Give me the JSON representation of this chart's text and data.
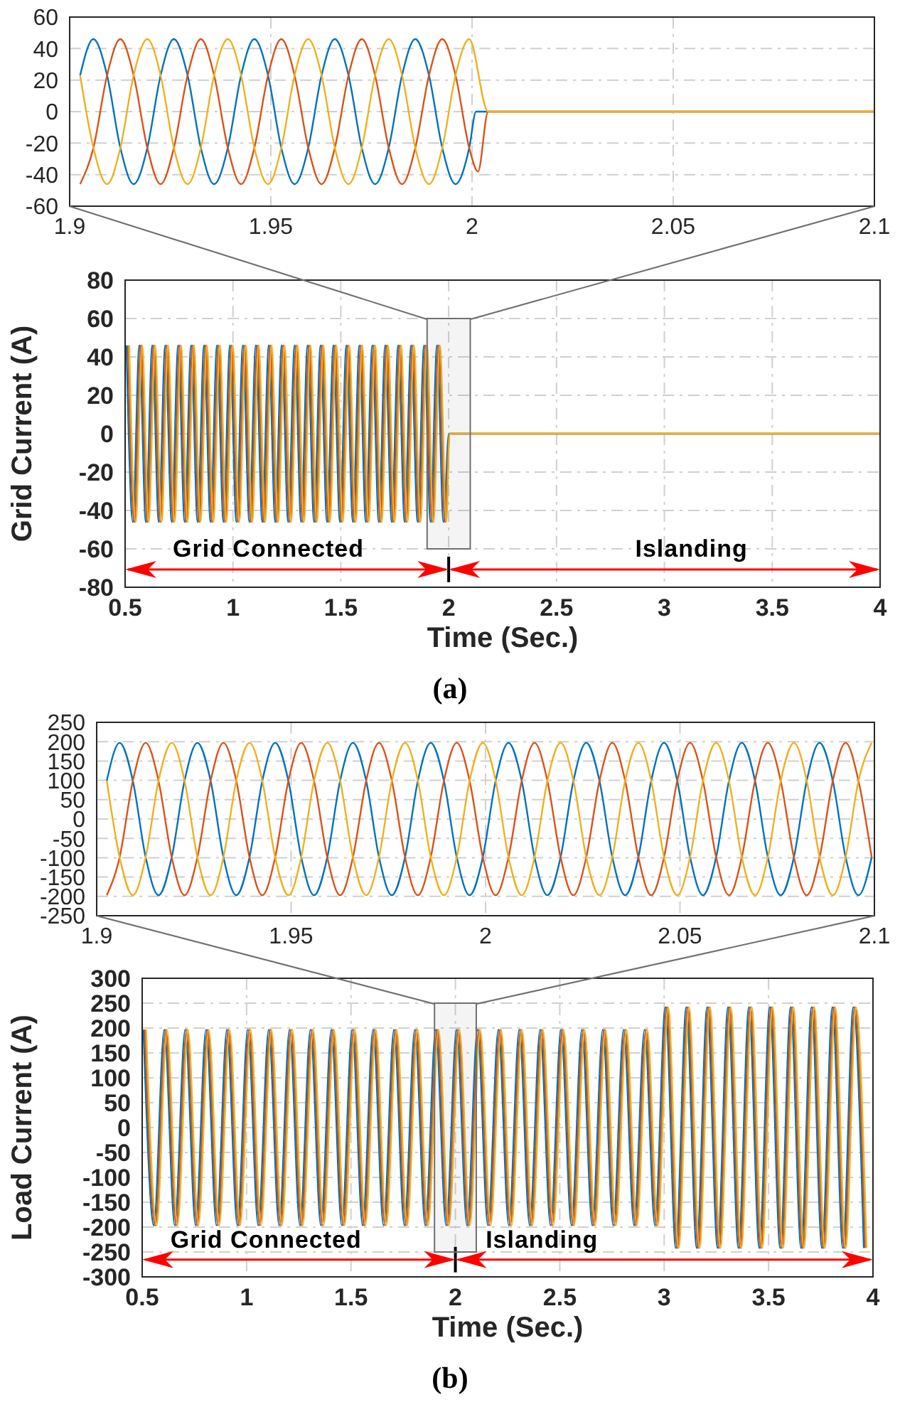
{
  "chart_data": [
    {
      "type": "line",
      "xlim": [
        1.9,
        2.1
      ],
      "xticks": [
        1.9,
        1.95,
        2,
        2.05,
        2.1
      ],
      "ylim": [
        -60,
        60
      ],
      "yticks": [
        -60,
        -40,
        -20,
        0,
        20,
        40,
        60
      ],
      "grid": true,
      "series": [
        {
          "color": "#0072bd",
          "x": [
            1.9026,
            1.9059,
            1.9093,
            1.9126,
            1.9159,
            1.9193,
            1.9226,
            1.9259,
            1.9293,
            1.9326,
            1.9359,
            1.9393,
            1.9426,
            1.9459,
            1.9493,
            1.9526,
            1.9559,
            1.9593,
            1.9626,
            1.9659,
            1.9693,
            1.9726,
            1.9759,
            1.9793,
            1.9826,
            1.9859,
            1.9893,
            1.9926,
            1.9959,
            1.9993,
            2.001,
            2.1
          ],
          "values": [
            23,
            46,
            23,
            -23,
            -46,
            -23,
            23,
            46,
            23,
            -23,
            -46,
            -23,
            23,
            46,
            23,
            -23,
            -46,
            -23,
            23,
            46,
            23,
            -23,
            -46,
            -23,
            23,
            46,
            23,
            -23,
            -46,
            -23,
            0,
            0
          ]
        },
        {
          "color": "#d95319",
          "x": [
            1.9026,
            1.9059,
            1.9093,
            1.9126,
            1.9159,
            1.9193,
            1.9226,
            1.9259,
            1.9293,
            1.9326,
            1.9359,
            1.9393,
            1.9426,
            1.9459,
            1.9493,
            1.9526,
            1.9559,
            1.9593,
            1.9626,
            1.9659,
            1.9693,
            1.9726,
            1.9759,
            1.9793,
            1.9826,
            1.9859,
            1.9893,
            1.9926,
            1.9959,
            1.9993,
            2.0015,
            2.004,
            2.1
          ],
          "values": [
            -46,
            -23,
            23,
            46,
            23,
            -23,
            -46,
            -23,
            23,
            46,
            23,
            -23,
            -46,
            -23,
            23,
            46,
            23,
            -23,
            -46,
            -23,
            23,
            46,
            23,
            -23,
            -46,
            -23,
            23,
            46,
            23,
            -23,
            -38,
            0,
            0
          ]
        },
        {
          "color": "#edb120",
          "x": [
            1.9026,
            1.9059,
            1.9093,
            1.9126,
            1.9159,
            1.9193,
            1.9226,
            1.9259,
            1.9293,
            1.9326,
            1.9359,
            1.9393,
            1.9426,
            1.9459,
            1.9493,
            1.9526,
            1.9559,
            1.9593,
            1.9626,
            1.9659,
            1.9693,
            1.9726,
            1.9759,
            1.9793,
            1.9826,
            1.9859,
            1.9893,
            1.9926,
            1.9959,
            1.9993,
            2.004,
            2.1
          ],
          "values": [
            23,
            -23,
            -46,
            -23,
            23,
            46,
            23,
            -23,
            -46,
            -23,
            23,
            46,
            23,
            -23,
            -46,
            -23,
            23,
            46,
            23,
            -23,
            -46,
            -23,
            23,
            46,
            23,
            -23,
            -46,
            -23,
            23,
            46,
            0,
            0
          ]
        }
      ]
    },
    {
      "type": "line",
      "xlabel": "Time (Sec.)",
      "ylabel": "Grid Current (A)",
      "xlim": [
        0.5,
        4
      ],
      "xticks": [
        0.5,
        1,
        1.5,
        2,
        2.5,
        3,
        3.5,
        4
      ],
      "ylim": [
        -80,
        80
      ],
      "yticks": [
        -80,
        -60,
        -40,
        -20,
        0,
        20,
        40,
        60,
        80
      ],
      "grid": true,
      "series": [
        {
          "color": "#0072bd",
          "x": [
            0.506,
            0.536,
            0.566,
            0.596,
            0.626,
            0.656,
            0.686,
            0.716,
            0.746,
            0.776,
            0.806,
            0.836,
            0.866,
            0.896,
            0.926,
            0.956,
            0.986,
            1.016,
            1.046,
            1.076,
            1.106,
            1.136,
            1.166,
            1.196,
            1.226,
            1.256,
            1.286,
            1.316,
            1.346,
            1.376,
            1.406,
            1.436,
            1.466,
            1.496,
            1.526,
            1.556,
            1.586,
            1.616,
            1.646,
            1.676,
            1.706,
            1.736,
            1.766,
            1.796,
            1.826,
            1.856,
            1.886,
            1.916,
            1.946,
            1.976,
            2.001,
            4
          ],
          "values": [
            46,
            -46,
            46,
            -46,
            46,
            -46,
            46,
            -46,
            46,
            -46,
            46,
            -46,
            46,
            -46,
            46,
            -46,
            46,
            -46,
            46,
            -46,
            46,
            -46,
            46,
            -46,
            46,
            -46,
            46,
            -46,
            46,
            -46,
            46,
            -46,
            46,
            -46,
            46,
            -46,
            46,
            -46,
            46,
            -46,
            46,
            -46,
            46,
            -46,
            46,
            -46,
            46,
            -46,
            46,
            -46,
            0,
            0
          ]
        },
        {
          "color": "#d95319",
          "x": [
            0.513,
            0.543,
            0.573,
            0.603,
            0.633,
            0.663,
            0.693,
            0.723,
            0.753,
            0.783,
            0.813,
            0.843,
            0.873,
            0.903,
            0.933,
            0.963,
            0.993,
            1.023,
            1.053,
            1.083,
            1.113,
            1.143,
            1.173,
            1.203,
            1.233,
            1.263,
            1.293,
            1.323,
            1.353,
            1.383,
            1.413,
            1.443,
            1.473,
            1.503,
            1.533,
            1.563,
            1.593,
            1.623,
            1.653,
            1.683,
            1.713,
            1.743,
            1.773,
            1.803,
            1.833,
            1.863,
            1.893,
            1.923,
            1.953,
            1.983,
            2.004,
            4
          ],
          "values": [
            46,
            -46,
            46,
            -46,
            46,
            -46,
            46,
            -46,
            46,
            -46,
            46,
            -46,
            46,
            -46,
            46,
            -46,
            46,
            -46,
            46,
            -46,
            46,
            -46,
            46,
            -46,
            46,
            -46,
            46,
            -46,
            46,
            -46,
            46,
            -46,
            46,
            -46,
            46,
            -46,
            46,
            -46,
            46,
            -46,
            46,
            -46,
            46,
            -46,
            46,
            -46,
            46,
            -46,
            46,
            -46,
            0,
            0
          ]
        },
        {
          "color": "#edb120",
          "x": [
            0.519,
            0.549,
            0.579,
            0.609,
            0.639,
            0.669,
            0.699,
            0.729,
            0.759,
            0.789,
            0.819,
            0.849,
            0.879,
            0.909,
            0.939,
            0.969,
            0.999,
            1.029,
            1.059,
            1.089,
            1.119,
            1.149,
            1.179,
            1.209,
            1.239,
            1.269,
            1.299,
            1.329,
            1.359,
            1.389,
            1.419,
            1.449,
            1.479,
            1.509,
            1.539,
            1.569,
            1.599,
            1.629,
            1.659,
            1.689,
            1.719,
            1.749,
            1.779,
            1.809,
            1.839,
            1.869,
            1.899,
            1.929,
            1.959,
            1.989,
            2.004,
            4
          ],
          "values": [
            46,
            -46,
            46,
            -46,
            46,
            -46,
            46,
            -46,
            46,
            -46,
            46,
            -46,
            46,
            -46,
            46,
            -46,
            46,
            -46,
            46,
            -46,
            46,
            -46,
            46,
            -46,
            46,
            -46,
            46,
            -46,
            46,
            -46,
            46,
            -46,
            46,
            -46,
            46,
            -46,
            46,
            -46,
            46,
            -46,
            46,
            -46,
            46,
            -46,
            46,
            -46,
            46,
            -46,
            46,
            -46,
            0,
            0
          ]
        }
      ],
      "ref_lines": [
        {
          "axis": "x",
          "value": 2,
          "color": "#000000"
        }
      ],
      "bands": [
        {
          "axis": "x",
          "from": 1.9,
          "to": 2.1,
          "color": "#707070"
        }
      ],
      "annotations": [
        "Grid Connected",
        "Islanding",
        "(a)"
      ]
    },
    {
      "type": "line",
      "xlim": [
        1.9,
        2.1
      ],
      "xticks": [
        1.9,
        1.95,
        2,
        2.05,
        2.1
      ],
      "ylim": [
        -250,
        250
      ],
      "yticks": [
        -250,
        -200,
        -150,
        -100,
        -50,
        0,
        50,
        100,
        150,
        200,
        250
      ],
      "grid": true,
      "x": [
        1.9026,
        1.9059,
        1.9093,
        1.9126,
        1.9159,
        1.9193,
        1.9226,
        1.9259,
        1.9293,
        1.9326,
        1.9359,
        1.9393,
        1.9426,
        1.9459,
        1.9493,
        1.9526,
        1.9559,
        1.9593,
        1.9626,
        1.9659,
        1.9693,
        1.9726,
        1.9759,
        1.9793,
        1.9826,
        1.9859,
        1.9893,
        1.9926,
        1.9959,
        1.9993,
        2.0026,
        2.0059,
        2.0093,
        2.0126,
        2.0159,
        2.0193,
        2.0226,
        2.0259,
        2.0293,
        2.0326,
        2.0359,
        2.0393,
        2.0426,
        2.0459,
        2.0493,
        2.0526,
        2.0559,
        2.0593,
        2.0626,
        2.0659,
        2.0693,
        2.0726,
        2.0759,
        2.0793,
        2.0826,
        2.0859,
        2.0893,
        2.0926,
        2.0959,
        2.0993
      ],
      "series": [
        {
          "color": "#0072bd",
          "values": [
            99,
            197,
            99,
            -99,
            -197,
            -99,
            99,
            197,
            99,
            -99,
            -197,
            -99,
            99,
            197,
            99,
            -99,
            -197,
            -99,
            99,
            197,
            99,
            -99,
            -197,
            -99,
            99,
            197,
            99,
            -99,
            -197,
            -99,
            99,
            197,
            99,
            -99,
            -197,
            -99,
            99,
            197,
            99,
            -99,
            -197,
            -99,
            99,
            197,
            99,
            -99,
            -197,
            -99,
            99,
            197,
            99,
            -99,
            -197,
            -99,
            99,
            197,
            99,
            -99,
            -197,
            -99
          ]
        },
        {
          "color": "#d95319",
          "values": [
            -197,
            -99,
            99,
            197,
            99,
            -99,
            -197,
            -99,
            99,
            197,
            99,
            -99,
            -197,
            -99,
            99,
            197,
            99,
            -99,
            -197,
            -99,
            99,
            197,
            99,
            -99,
            -197,
            -99,
            99,
            197,
            99,
            -99,
            -197,
            -99,
            99,
            197,
            99,
            -99,
            -197,
            -99,
            99,
            197,
            99,
            -99,
            -197,
            -99,
            99,
            197,
            99,
            -99,
            -197,
            -99,
            99,
            197,
            99,
            -99,
            -197,
            -99,
            99,
            197,
            99,
            -99
          ]
        },
        {
          "color": "#edb120",
          "values": [
            99,
            -99,
            -197,
            -99,
            99,
            197,
            99,
            -99,
            -197,
            -99,
            99,
            197,
            99,
            -99,
            -197,
            -99,
            99,
            197,
            99,
            -99,
            -197,
            -99,
            99,
            197,
            99,
            -99,
            -197,
            -99,
            99,
            197,
            99,
            -99,
            -197,
            -99,
            99,
            197,
            99,
            -99,
            -197,
            -99,
            99,
            197,
            99,
            -99,
            -197,
            -99,
            99,
            197,
            99,
            -99,
            -197,
            -99,
            99,
            197,
            99,
            -99,
            -197,
            -99,
            99,
            197
          ]
        }
      ]
    },
    {
      "type": "line",
      "xlabel": "Time (Sec.)",
      "ylabel": "Load Current (A)",
      "xlim": [
        0.5,
        4
      ],
      "xticks": [
        0.5,
        1,
        1.5,
        2,
        2.5,
        3,
        3.5,
        4
      ],
      "ylim": [
        -300,
        300
      ],
      "yticks": [
        -300,
        -250,
        -200,
        -150,
        -100,
        -50,
        0,
        50,
        100,
        150,
        200,
        250,
        300
      ],
      "grid": true,
      "series": [
        {
          "color": "#0072bd",
          "x": [
            0.506,
            0.556,
            0.606,
            0.656,
            0.706,
            0.756,
            0.806,
            0.856,
            0.906,
            0.956,
            1.006,
            1.056,
            1.106,
            1.156,
            1.206,
            1.256,
            1.306,
            1.356,
            1.406,
            1.456,
            1.506,
            1.556,
            1.606,
            1.656,
            1.706,
            1.756,
            1.806,
            1.856,
            1.906,
            1.956,
            2.006,
            2.056,
            2.106,
            2.156,
            2.206,
            2.256,
            2.306,
            2.356,
            2.406,
            2.456,
            2.506,
            2.556,
            2.606,
            2.656,
            2.706,
            2.756,
            2.806,
            2.856,
            2.906,
            2.956,
            3.006,
            3.056,
            3.106,
            3.156,
            3.206,
            3.256,
            3.306,
            3.356,
            3.406,
            3.456,
            3.506,
            3.556,
            3.606,
            3.656,
            3.706,
            3.756,
            3.806,
            3.856,
            3.906,
            3.956
          ],
          "values": [
            197,
            -197,
            197,
            -197,
            197,
            -197,
            197,
            -197,
            197,
            -197,
            197,
            -197,
            197,
            -197,
            197,
            -197,
            197,
            -197,
            197,
            -197,
            197,
            -197,
            197,
            -197,
            197,
            -197,
            197,
            -197,
            197,
            -197,
            197,
            -197,
            197,
            -197,
            197,
            -197,
            197,
            -197,
            197,
            -197,
            197,
            -197,
            197,
            -197,
            197,
            -197,
            197,
            -197,
            197,
            -197,
            242,
            -242,
            242,
            -242,
            242,
            -242,
            242,
            -242,
            242,
            -242,
            242,
            -242,
            242,
            -242,
            242,
            -242,
            242,
            -242,
            242,
            -242
          ]
        },
        {
          "color": "#d95319",
          "x": [
            0.513,
            0.563,
            0.613,
            0.663,
            0.713,
            0.763,
            0.813,
            0.863,
            0.913,
            0.963,
            1.013,
            1.063,
            1.113,
            1.163,
            1.213,
            1.263,
            1.313,
            1.363,
            1.413,
            1.463,
            1.513,
            1.563,
            1.613,
            1.663,
            1.713,
            1.763,
            1.813,
            1.863,
            1.913,
            1.963,
            2.013,
            2.063,
            2.113,
            2.163,
            2.213,
            2.263,
            2.313,
            2.363,
            2.413,
            2.463,
            2.513,
            2.563,
            2.613,
            2.663,
            2.713,
            2.763,
            2.813,
            2.863,
            2.913,
            2.963,
            3.013,
            3.063,
            3.113,
            3.163,
            3.213,
            3.263,
            3.313,
            3.363,
            3.413,
            3.463,
            3.513,
            3.563,
            3.613,
            3.663,
            3.713,
            3.763,
            3.813,
            3.863,
            3.913,
            3.963
          ],
          "values": [
            197,
            -197,
            197,
            -197,
            197,
            -197,
            197,
            -197,
            197,
            -197,
            197,
            -197,
            197,
            -197,
            197,
            -197,
            197,
            -197,
            197,
            -197,
            197,
            -197,
            197,
            -197,
            197,
            -197,
            197,
            -197,
            197,
            -197,
            197,
            -197,
            197,
            -197,
            197,
            -197,
            197,
            -197,
            197,
            -197,
            197,
            -197,
            197,
            -197,
            197,
            -197,
            197,
            -197,
            197,
            -197,
            242,
            -242,
            242,
            -242,
            242,
            -242,
            242,
            -242,
            242,
            -242,
            242,
            -242,
            242,
            -242,
            242,
            -242,
            242,
            -242,
            242,
            -242
          ]
        },
        {
          "color": "#edb120",
          "x": [
            0.519,
            0.569,
            0.619,
            0.669,
            0.719,
            0.769,
            0.819,
            0.869,
            0.919,
            0.969,
            1.019,
            1.069,
            1.119,
            1.169,
            1.219,
            1.269,
            1.319,
            1.369,
            1.419,
            1.469,
            1.519,
            1.569,
            1.619,
            1.669,
            1.719,
            1.769,
            1.819,
            1.869,
            1.919,
            1.969,
            2.019,
            2.069,
            2.119,
            2.169,
            2.219,
            2.269,
            2.319,
            2.369,
            2.419,
            2.469,
            2.519,
            2.569,
            2.619,
            2.669,
            2.719,
            2.769,
            2.819,
            2.869,
            2.919,
            2.969,
            3.019,
            3.069,
            3.119,
            3.169,
            3.219,
            3.269,
            3.319,
            3.369,
            3.419,
            3.469,
            3.519,
            3.569,
            3.619,
            3.669,
            3.719,
            3.769,
            3.819,
            3.869,
            3.919,
            3.969
          ],
          "values": [
            197,
            -197,
            197,
            -197,
            197,
            -197,
            197,
            -197,
            197,
            -197,
            197,
            -197,
            197,
            -197,
            197,
            -197,
            197,
            -197,
            197,
            -197,
            197,
            -197,
            197,
            -197,
            197,
            -197,
            197,
            -197,
            197,
            -197,
            197,
            -197,
            197,
            -197,
            197,
            -197,
            197,
            -197,
            197,
            -197,
            197,
            -197,
            197,
            -197,
            197,
            -197,
            197,
            -197,
            197,
            -197,
            242,
            -242,
            242,
            -242,
            242,
            -242,
            242,
            -242,
            242,
            -242,
            242,
            -242,
            242,
            -242,
            242,
            -242,
            242,
            -242,
            242,
            -242
          ]
        }
      ],
      "ref_lines": [
        {
          "axis": "x",
          "value": 2,
          "color": "#000000"
        }
      ],
      "bands": [
        {
          "axis": "x",
          "from": 1.9,
          "to": 2.1,
          "color": "#707070"
        }
      ],
      "annotations": [
        "Grid Connected",
        "Islanding",
        "(b)"
      ]
    }
  ]
}
